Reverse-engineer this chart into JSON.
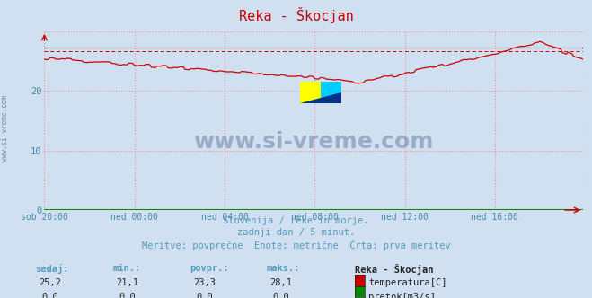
{
  "title": "Reka - Škocjan",
  "title_color": "#cc0000",
  "bg_color": "#d0e0f0",
  "plot_bg_color": "#d0e0f0",
  "grid_color": "#ee8888",
  "xlabel_color": "#4488aa",
  "ylabel_color": "#4488aa",
  "xlabels": [
    "sob 20:00",
    "ned 00:00",
    "ned 04:00",
    "ned 08:00",
    "ned 12:00",
    "ned 16:00"
  ],
  "ylim": [
    0,
    30
  ],
  "yticks": [
    0,
    10,
    20
  ],
  "line_color": "#cc0000",
  "flow_color": "#008800",
  "black_line_y": 27.2,
  "dashed_line_y": 26.7,
  "watermark": "www.si-vreme.com",
  "watermark_color": "#1a3a6a",
  "watermark_alpha": 0.3,
  "subtitle1": "Slovenija / reke in morje.",
  "subtitle2": "zadnji dan / 5 minut.",
  "subtitle3": "Meritve: povprečne  Enote: metrične  Črta: prva meritev",
  "subtitle_color": "#5599bb",
  "table_headers": [
    "sedaj:",
    "min.:",
    "povpr.:",
    "maks.:"
  ],
  "table_values_temp": [
    "25,2",
    "21,1",
    "23,3",
    "28,1"
  ],
  "table_values_flow": [
    "0,0",
    "0,0",
    "0,0",
    "0,0"
  ],
  "legend_title": "Reka - Škocjan",
  "legend_temp": "temperatura[C]",
  "legend_flow": "pretok[m3/s]",
  "axis_arrow_color": "#cc0000",
  "n_points": 288,
  "figwidth": 6.59,
  "figheight": 3.32,
  "dpi": 100
}
